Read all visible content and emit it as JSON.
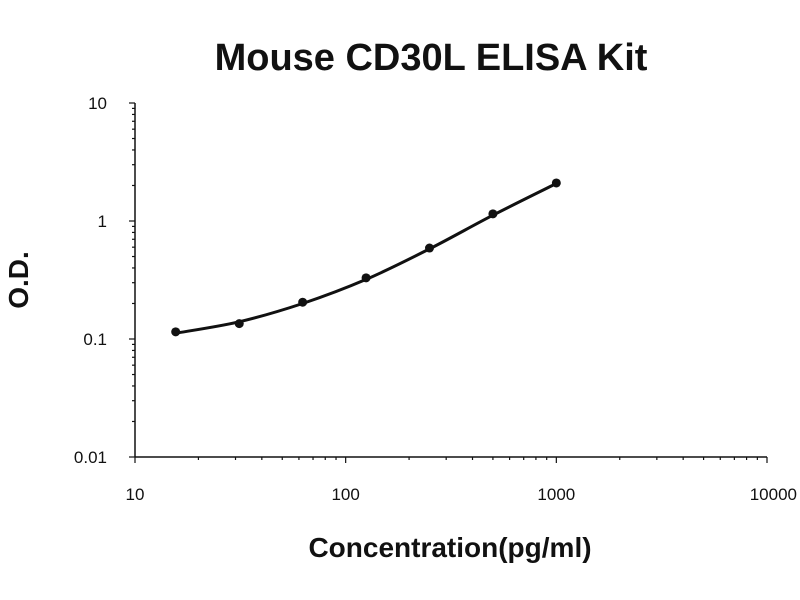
{
  "chart_data": {
    "type": "scatter",
    "title": "Mouse CD30L ELISA Kit",
    "xlabel": "Concentration(pg/ml)",
    "ylabel": "O.D.",
    "x_scale": "log",
    "y_scale": "log",
    "xlim": [
      10,
      10000
    ],
    "ylim": [
      0.01,
      10
    ],
    "x_tick_labels": [
      "10",
      "100",
      "1000",
      "10000"
    ],
    "y_tick_labels": [
      "10",
      "1",
      "0.1",
      "0.01"
    ],
    "grid": false,
    "legend": "none",
    "series": [
      {
        "x": [
          15.6,
          31.25,
          62.5,
          125,
          250,
          500,
          1000
        ],
        "y": [
          0.115,
          0.135,
          0.205,
          0.33,
          0.59,
          1.15,
          2.1
        ]
      }
    ],
    "fit_curve": {
      "x": [
        15.6,
        31.25,
        62.5,
        125,
        250,
        500,
        1000
      ],
      "y": [
        0.112,
        0.14,
        0.2,
        0.32,
        0.58,
        1.12,
        2.08
      ]
    },
    "colors": {
      "marker": "#111111",
      "curve": "#111111",
      "axis": "#111111"
    }
  }
}
